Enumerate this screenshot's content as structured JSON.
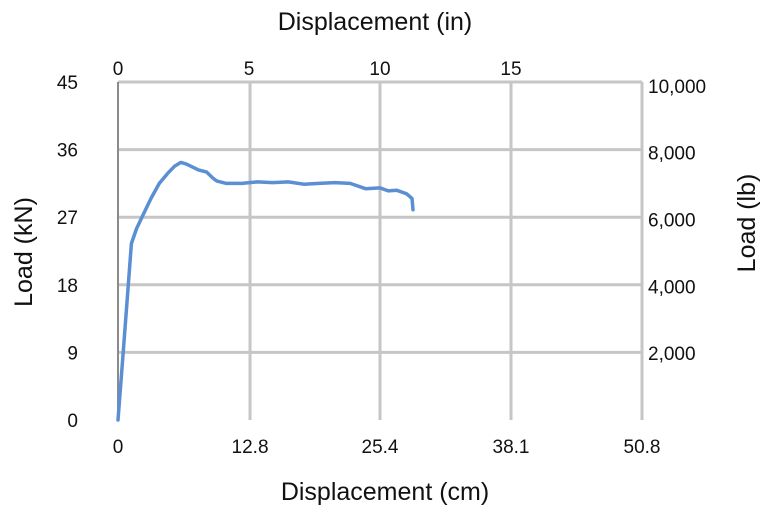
{
  "chart_data": {
    "type": "line",
    "xlabel": "Displacement (cm)",
    "ylabel": "Load (kN)",
    "x2label": "Displacement (in)",
    "y2label": "Load (lb)",
    "xlim": [
      0,
      50.8
    ],
    "ylim": [
      0,
      45
    ],
    "x_ticks": [
      0,
      12.8,
      25.4,
      38.1,
      50.8
    ],
    "x_tick_labels": [
      "0",
      "12.8",
      "25.4",
      "38.1",
      "50.8"
    ],
    "y_ticks": [
      0,
      9,
      18,
      27,
      36,
      45
    ],
    "y_tick_labels": [
      "0",
      "9",
      "18",
      "27",
      "36",
      "45"
    ],
    "x2lim": [
      0,
      20
    ],
    "x2_ticks": [
      0,
      5,
      10,
      15
    ],
    "x2_tick_labels": [
      "0",
      "5",
      "10",
      "15"
    ],
    "y2lim": [
      0,
      10116
    ],
    "y2_ticks": [
      2000,
      4000,
      6000,
      8000,
      10000
    ],
    "y2_tick_labels": [
      "2,000",
      "4,000",
      "6,000",
      "8,000",
      "10,000"
    ],
    "grid": true,
    "legend": "none",
    "series": [
      {
        "color": "#5b8fd4",
        "x": [
          0,
          0.5,
          1,
          1.3,
          1.8,
          2.5,
          3.2,
          4.0,
          4.8,
          5.5,
          6.1,
          6.6,
          7.2,
          7.8,
          8.6,
          9.2,
          9.6,
          10.5,
          12.0,
          13.5,
          15.0,
          16.5,
          18.0,
          19.5,
          21.0,
          22.5,
          24.0,
          25.4,
          26.2,
          27.0,
          28.0,
          28.5,
          28.6
        ],
        "y": [
          0,
          9,
          18,
          23.5,
          25.5,
          27.5,
          29.5,
          31.5,
          32.8,
          33.8,
          34.3,
          34.1,
          33.7,
          33.3,
          33.0,
          32.2,
          31.8,
          31.5,
          31.5,
          31.7,
          31.6,
          31.7,
          31.4,
          31.5,
          31.6,
          31.5,
          30.8,
          30.9,
          30.5,
          30.6,
          30.1,
          29.5,
          28.0
        ]
      }
    ]
  }
}
